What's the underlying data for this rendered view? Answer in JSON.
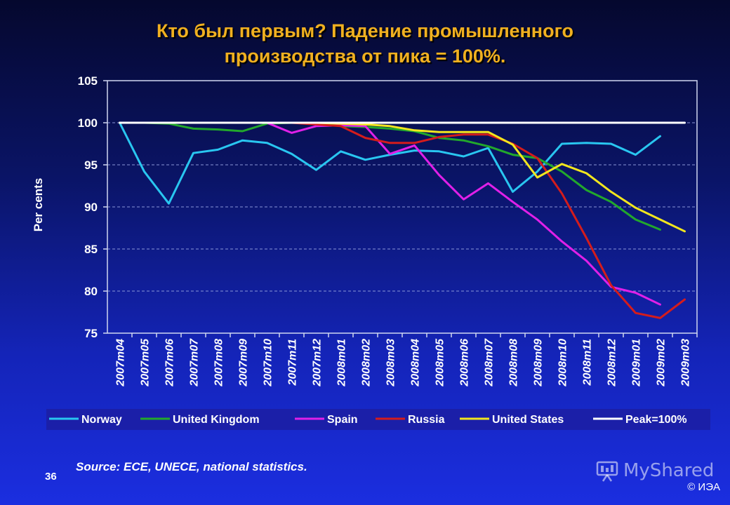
{
  "slide": {
    "title_line1": "Кто был первым? Падение промышленного",
    "title_line2": "производства от пика = 100%.",
    "source": "Source: ECE, UNECE, national statistics.",
    "slide_number": "36",
    "watermark": "MyShared",
    "copyright": "© ИЭА"
  },
  "chart_data": {
    "type": "line",
    "title": "",
    "xlabel": "",
    "ylabel": "Per cents",
    "ylim": [
      75,
      105
    ],
    "yticks": [
      75,
      80,
      85,
      90,
      95,
      100,
      105
    ],
    "grid": "horizontal dashed",
    "legend_position": "bottom",
    "categories": [
      "2007m04",
      "2007m05",
      "2007m06",
      "2007m07",
      "2007m08",
      "2007m09",
      "2007m10",
      "2007m11",
      "2007m12",
      "2008m01",
      "2008m02",
      "2008m03",
      "2008m04",
      "2008m05",
      "2008m06",
      "2008m07",
      "2008m08",
      "2008m09",
      "2008m10",
      "2008m11",
      "2008m12",
      "2009m01",
      "2009m02",
      "2009m03"
    ],
    "series": [
      {
        "name": "Norway",
        "color": "#29c6f0",
        "values": [
          100,
          94.2,
          90.4,
          96.4,
          96.8,
          97.9,
          97.6,
          96.3,
          94.4,
          96.6,
          95.6,
          96.2,
          96.7,
          96.6,
          96,
          97,
          91.8,
          94.2,
          97.5,
          97.6,
          97.5,
          96.2,
          98.4,
          null
        ]
      },
      {
        "name": "United Kingdom",
        "color": "#22a82c",
        "values": [
          100,
          100,
          99.9,
          99.3,
          99.2,
          99,
          99.9,
          100,
          100,
          99.6,
          99.5,
          99.3,
          99,
          98.2,
          97.9,
          97.2,
          96.2,
          95.8,
          94.2,
          92,
          90.6,
          88.5,
          87.3,
          null
        ]
      },
      {
        "name": "Spain",
        "color": "#e020e8",
        "values": [
          100,
          100,
          100,
          100,
          100,
          100,
          100,
          98.8,
          99.6,
          99.7,
          99.6,
          96.3,
          97.3,
          93.8,
          90.9,
          92.8,
          90.6,
          88.5,
          85.9,
          83.6,
          80.5,
          79.8,
          78.4,
          null
        ]
      },
      {
        "name": "Russia",
        "color": "#d41c1c",
        "values": [
          100,
          100,
          100,
          100,
          100,
          100,
          100,
          100,
          99.8,
          99.6,
          98.2,
          97.6,
          97.6,
          98.3,
          98.6,
          98.6,
          97.5,
          95.8,
          91.6,
          86.3,
          80.7,
          77.4,
          76.8,
          79.0
        ]
      },
      {
        "name": "United States",
        "color": "#f2e61e",
        "values": [
          100,
          100,
          100,
          100,
          100,
          100,
          100,
          100,
          100,
          99.9,
          99.8,
          99.6,
          99.1,
          98.9,
          98.9,
          98.9,
          97.4,
          93.5,
          95.1,
          94,
          91.8,
          89.9,
          88.5,
          87.1
        ]
      },
      {
        "name": "Peak=100%",
        "color": "#ffffff",
        "values": [
          100,
          100,
          100,
          100,
          100,
          100,
          100,
          100,
          100,
          100,
          100,
          100,
          100,
          100,
          100,
          100,
          100,
          100,
          100,
          100,
          100,
          100,
          100,
          100
        ]
      }
    ]
  }
}
